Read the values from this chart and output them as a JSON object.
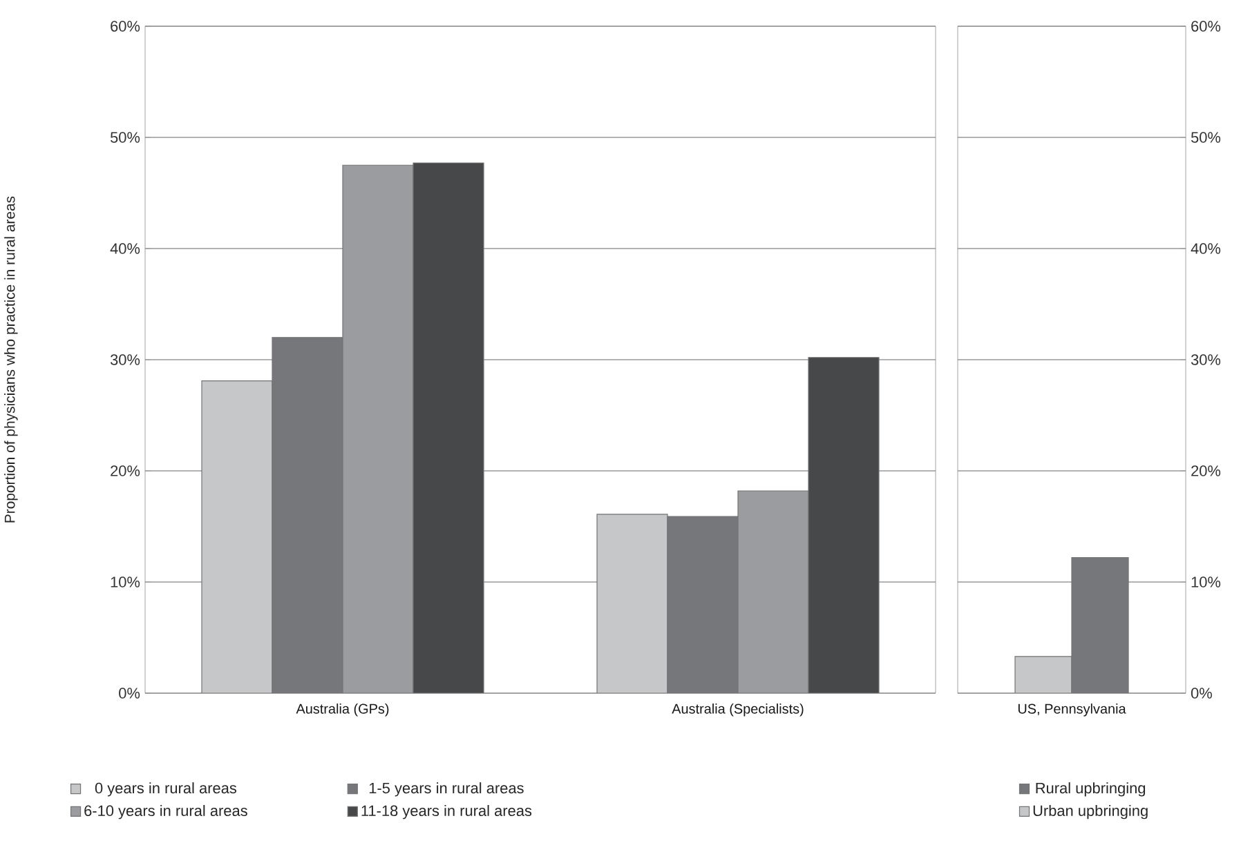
{
  "chart_data": [
    {
      "type": "bar",
      "ylabel": "Proportion of physicians who practice in rural areas",
      "categories": [
        "Australia (GPs)",
        "Australia (Specialists)"
      ],
      "series": [
        {
          "name": "0 years in rural areas",
          "color": "#c6c7c9",
          "values": [
            28.1,
            16.1
          ]
        },
        {
          "name": "1-5 years in rural areas",
          "color": "#76777b",
          "values": [
            32.0,
            15.9
          ]
        },
        {
          "name": "6-10 years in rural areas",
          "color": "#9b9c9f",
          "values": [
            47.5,
            18.2
          ]
        },
        {
          "name": "11-18 years in rural areas",
          "color": "#47484a",
          "values": [
            47.7,
            30.2
          ]
        }
      ],
      "ylim": [
        0,
        60
      ],
      "yticks": [
        {
          "value": 0,
          "label": "0%"
        },
        {
          "value": 10,
          "label": "10%"
        },
        {
          "value": 20,
          "label": "20%"
        },
        {
          "value": 30,
          "label": "30%"
        },
        {
          "value": 40,
          "label": "40%"
        },
        {
          "value": 50,
          "label": "50%"
        },
        {
          "value": 60,
          "label": "60%"
        }
      ],
      "grid": "y",
      "legend": "bottom"
    },
    {
      "type": "bar",
      "categories": [
        "US, Pennsylvania"
      ],
      "series": [
        {
          "name": "Urban upbringing",
          "color": "#c6c7c9",
          "values": [
            3.3
          ]
        },
        {
          "name": "Rural upbringing",
          "color": "#76777b",
          "values": [
            12.2
          ]
        }
      ],
      "ylim": [
        0,
        60
      ],
      "yticks": [
        {
          "value": 0,
          "label": "0%"
        },
        {
          "value": 10,
          "label": "10%"
        },
        {
          "value": 20,
          "label": "20%"
        },
        {
          "value": 30,
          "label": "30%"
        },
        {
          "value": 40,
          "label": "40%"
        },
        {
          "value": 50,
          "label": "50%"
        },
        {
          "value": 60,
          "label": "60%"
        }
      ],
      "grid": "y",
      "legend": "bottom"
    }
  ]
}
